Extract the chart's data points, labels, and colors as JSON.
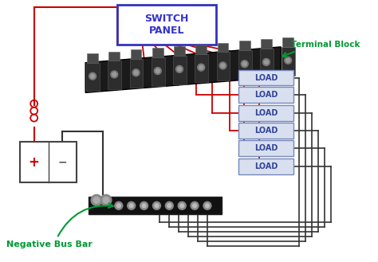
{
  "background_color": "#ffffff",
  "switch_panel_label": "SWITCH\nPANEL",
  "terminal_block_label": "Terminal Block",
  "negative_bus_bar_label": "Negative Bus Bar",
  "load_labels": [
    "LOAD",
    "LOAD",
    "LOAD",
    "LOAD",
    "LOAD",
    "LOAD"
  ],
  "green_color": "#009933",
  "load_box_facecolor": "#d8e0f0",
  "load_box_edgecolor": "#7788bb",
  "load_text_color": "#334499",
  "switch_panel_edgecolor": "#3333bb",
  "switch_panel_text_color": "#3333cc",
  "wire_red": "#cc0000",
  "wire_black": "#333333",
  "tb_facecolor": "#1c1c1c",
  "nbb_facecolor": "#111111",
  "battery_pos_color": "#cc0000",
  "battery_neg_color": "#555555",
  "battery_edgecolor": "#444444"
}
